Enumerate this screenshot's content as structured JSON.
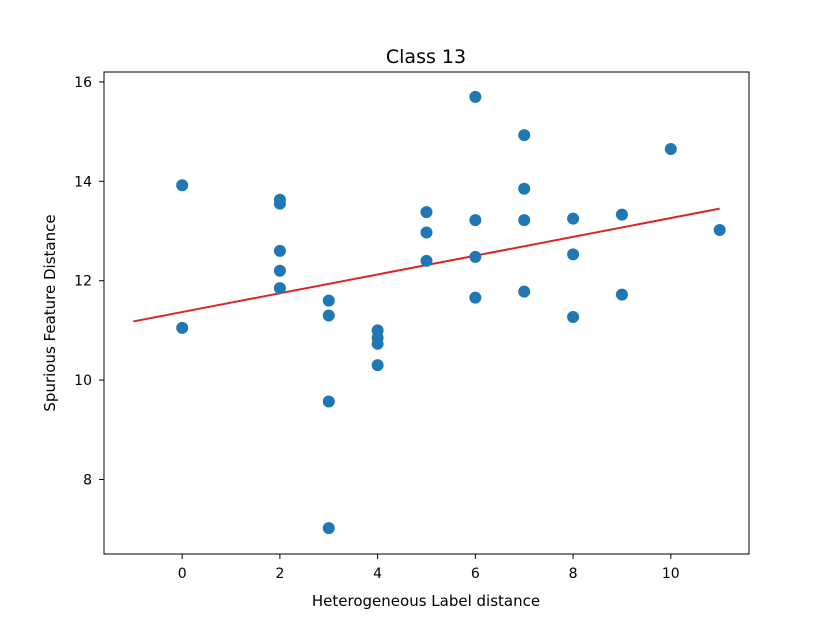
{
  "chart_data": {
    "type": "scatter",
    "title": "Class 13",
    "xlabel": "Heterogeneous Label distance",
    "ylabel": "Spurious Feature Distance",
    "xlim": [
      -1.6,
      11.6
    ],
    "ylim": [
      6.5,
      16.2
    ],
    "xticks": [
      0,
      2,
      4,
      6,
      8,
      10
    ],
    "yticks": [
      8,
      10,
      12,
      14,
      16
    ],
    "xtick_labels": [
      "0",
      "2",
      "4",
      "6",
      "8",
      "10"
    ],
    "ytick_labels": [
      "8",
      "10",
      "12",
      "14",
      "16"
    ],
    "grid": false,
    "series": [
      {
        "kind": "scatter",
        "color": "#1f77b4",
        "points": [
          {
            "x": 0,
            "y": 13.92
          },
          {
            "x": 0,
            "y": 11.05
          },
          {
            "x": 2,
            "y": 13.63
          },
          {
            "x": 2,
            "y": 13.55
          },
          {
            "x": 2,
            "y": 12.6
          },
          {
            "x": 2,
            "y": 12.2
          },
          {
            "x": 2,
            "y": 11.85
          },
          {
            "x": 3,
            "y": 11.6
          },
          {
            "x": 3,
            "y": 11.3
          },
          {
            "x": 3,
            "y": 9.57
          },
          {
            "x": 3,
            "y": 7.02
          },
          {
            "x": 4,
            "y": 11.0
          },
          {
            "x": 4,
            "y": 10.85
          },
          {
            "x": 4,
            "y": 10.73
          },
          {
            "x": 4,
            "y": 10.3
          },
          {
            "x": 5,
            "y": 13.38
          },
          {
            "x": 5,
            "y": 12.97
          },
          {
            "x": 5,
            "y": 12.4
          },
          {
            "x": 6,
            "y": 15.7
          },
          {
            "x": 6,
            "y": 13.22
          },
          {
            "x": 6,
            "y": 12.48
          },
          {
            "x": 6,
            "y": 11.66
          },
          {
            "x": 7,
            "y": 14.93
          },
          {
            "x": 7,
            "y": 13.85
          },
          {
            "x": 7,
            "y": 13.22
          },
          {
            "x": 7,
            "y": 11.78
          },
          {
            "x": 8,
            "y": 13.25
          },
          {
            "x": 8,
            "y": 12.53
          },
          {
            "x": 8,
            "y": 11.27
          },
          {
            "x": 9,
            "y": 13.33
          },
          {
            "x": 9,
            "y": 11.72
          },
          {
            "x": 10,
            "y": 14.65
          },
          {
            "x": 11,
            "y": 13.02
          }
        ]
      },
      {
        "kind": "line",
        "color": "#d62728",
        "points": [
          {
            "x": -1,
            "y": 11.18
          },
          {
            "x": 11,
            "y": 13.45
          }
        ]
      }
    ]
  }
}
